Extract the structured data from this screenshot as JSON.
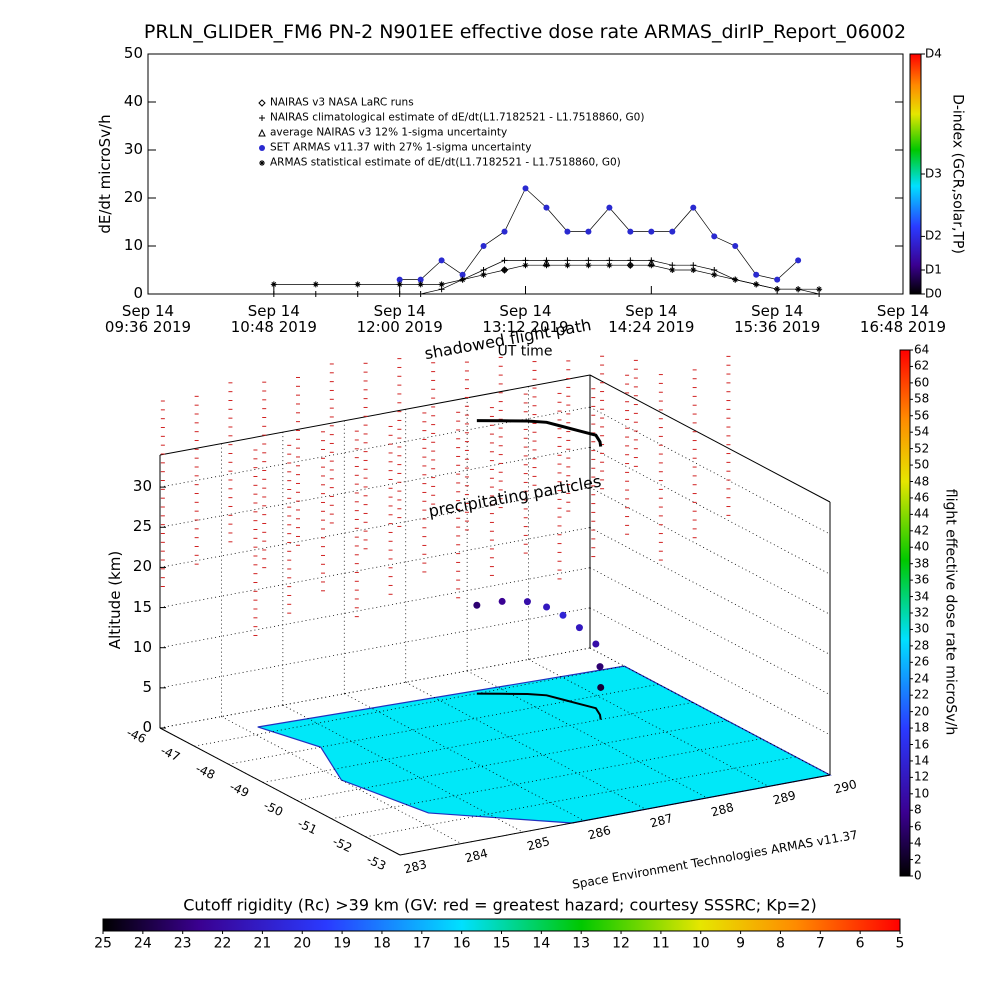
{
  "chart_data": [
    {
      "type": "line",
      "title": "PRLN_GLIDER_FM6 PN-2 N901EE effective dose rate ARMAS_dirIP_Report_06002",
      "xlabel": "UT time",
      "ylabel": "dE/dt microSv/h",
      "x": [
        10.8,
        11.2,
        11.6,
        12.0,
        12.2,
        12.4,
        12.6,
        12.8,
        13.0,
        13.2,
        13.4,
        13.6,
        13.8,
        14.0,
        14.2,
        14.4,
        14.6,
        14.8,
        15.0,
        15.2,
        15.4,
        15.6,
        15.8,
        16.0
      ],
      "xlim": [
        9.6,
        16.8
      ],
      "xticks": [
        {
          "value": 9.6,
          "label": "Sep 14\n09:36 2019"
        },
        {
          "value": 10.8,
          "label": "Sep 14\n10:48 2019"
        },
        {
          "value": 12.0,
          "label": "Sep 14\n12:00 2019"
        },
        {
          "value": 13.2,
          "label": "Sep 14\n13:12 2019"
        },
        {
          "value": 14.4,
          "label": "Sep 14\n14:24 2019"
        },
        {
          "value": 15.6,
          "label": "Sep 14\n15:36 2019"
        },
        {
          "value": 16.8,
          "label": "Sep 14\n16:48 2019"
        }
      ],
      "ylim": [
        0,
        50
      ],
      "yticks": [
        0,
        10,
        20,
        30,
        40,
        50
      ],
      "legend": "upper left",
      "series": [
        {
          "name": "NAIRAS v3 NASA LaRC runs",
          "color": "#000000",
          "marker": "diamond",
          "values": [
            null,
            null,
            null,
            null,
            null,
            null,
            null,
            null,
            5,
            null,
            null,
            null,
            null,
            null,
            6,
            null,
            null,
            null,
            null,
            null,
            null,
            null,
            null,
            null
          ]
        },
        {
          "name": "NAIRAS climatological estimate of dE/dt(L1.7182521 - L1.7518860, G0)",
          "color": "#000000",
          "marker": "plus",
          "values": [
            0,
            0,
            0,
            0,
            0,
            1,
            3,
            5,
            7,
            7,
            7,
            7,
            7,
            7,
            7,
            7,
            6,
            6,
            5,
            3,
            2,
            1,
            1,
            0
          ]
        },
        {
          "name": "average NAIRAS v3 12% 1-sigma uncertainty",
          "color": "#000000",
          "marker": "triangle",
          "values": [
            null,
            null,
            null,
            null,
            null,
            null,
            null,
            null,
            null,
            null,
            6.5,
            null,
            null,
            null,
            null,
            6.5,
            null,
            null,
            null,
            null,
            null,
            null,
            null,
            null
          ]
        },
        {
          "name": "SET ARMAS v11.37 with 27% 1-sigma uncertainty",
          "color": "#2a2ad0",
          "marker": "circle",
          "values": [
            null,
            null,
            null,
            3,
            3,
            7,
            4,
            10,
            13,
            22,
            18,
            13,
            13,
            18,
            13,
            13,
            13,
            18,
            12,
            10,
            4,
            3,
            7,
            null
          ]
        },
        {
          "name": "ARMAS statistical estimate of dE/dt(L1.7182521 - L1.7518860, G0)",
          "color": "#000000",
          "marker": "asterisk",
          "values": [
            2,
            2,
            2,
            2,
            2,
            2,
            3,
            4,
            5,
            6,
            6,
            6,
            6,
            6,
            6,
            6,
            5,
            5,
            4,
            3,
            2,
            1,
            1,
            1
          ]
        }
      ],
      "colorbar": {
        "label": "D-index (GCR,solar,TP)",
        "lim": [
          0,
          50
        ],
        "ticks": [
          {
            "value": 0,
            "label": "D0"
          },
          {
            "value": 5,
            "label": "D1"
          },
          {
            "value": 12,
            "label": "D2"
          },
          {
            "value": 25,
            "label": "D3"
          },
          {
            "value": 50,
            "label": "D4"
          }
        ]
      }
    },
    {
      "type": "scatter3d",
      "annotations": [
        "shadowed flight path",
        "precipitating particles",
        "Space Environment Technologies ARMAS v11.37"
      ],
      "zlabel": "Altitude (km)",
      "xlim": [
        -46,
        -53
      ],
      "xticks": [
        -46,
        -47,
        -48,
        -49,
        -50,
        -51,
        -52,
        -53
      ],
      "ylim": [
        283,
        290
      ],
      "yticks": [
        283,
        284,
        285,
        286,
        287,
        288,
        289,
        290
      ],
      "zlim": [
        0,
        34
      ],
      "zticks": [
        0,
        5,
        10,
        15,
        20,
        25,
        30
      ],
      "flight": {
        "x": [
          -47.0,
          -47.2,
          -47.4,
          -47.6,
          -47.9,
          -48.2,
          -48.5,
          -48.8,
          -49.0
        ],
        "y": [
          287.6,
          287.9,
          288.2,
          288.4,
          288.5,
          288.6,
          288.7,
          288.6,
          288.5
        ],
        "z": [
          11,
          11.5,
          11.5,
          11,
          10.5,
          9.5,
          8,
          6,
          4
        ],
        "values": [
          6,
          8,
          10,
          12,
          14,
          12,
          10,
          6,
          3
        ]
      },
      "colorbar": {
        "label": "flight effective dose rate microSv/h",
        "lim": [
          0,
          64
        ],
        "ticks": [
          0,
          2,
          4,
          6,
          8,
          10,
          12,
          14,
          16,
          18,
          20,
          22,
          24,
          26,
          28,
          30,
          32,
          34,
          36,
          38,
          40,
          42,
          44,
          46,
          48,
          50,
          52,
          54,
          56,
          58,
          60,
          62,
          64
        ]
      }
    },
    {
      "type": "colorbar",
      "title": "Cutoff rigidity (Rc) >39 km (GV: red = greatest hazard; courtesy SSSRC; Kp=2)",
      "lim": [
        25,
        5
      ],
      "ticks": [
        25,
        24,
        23,
        22,
        21,
        20,
        19,
        18,
        17,
        16,
        15,
        14,
        13,
        12,
        11,
        10,
        9,
        8,
        7,
        6,
        5
      ]
    }
  ]
}
